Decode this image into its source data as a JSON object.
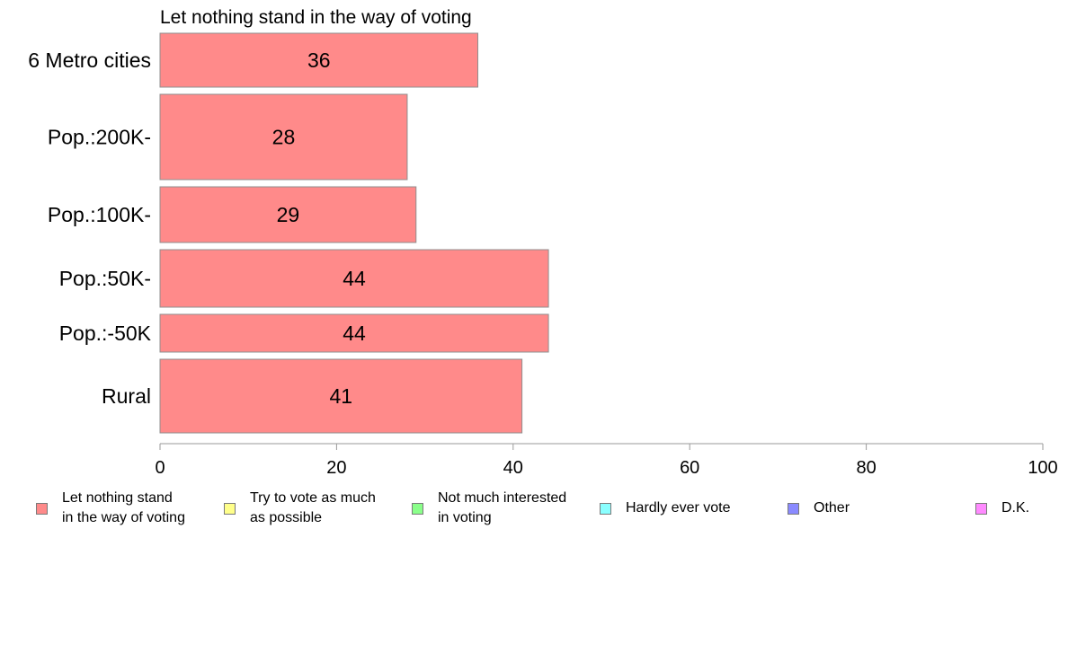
{
  "chart_data": {
    "type": "bar",
    "orientation": "horizontal",
    "title": "Let nothing stand in the way of voting",
    "xlabel": "",
    "ylabel": "",
    "xlim": [
      0,
      100
    ],
    "x_ticks": [
      "0",
      "20",
      "40",
      "60",
      "80",
      "100"
    ],
    "grid": false,
    "categories": [
      "6 Metro cities",
      "Pop.:200K-",
      "Pop.:100K-",
      "Pop.:50K-",
      "Pop.:-50K",
      "Rural"
    ],
    "series": [
      {
        "name": "Let nothing stand in the way of voting",
        "color": "#ff8a8a",
        "values": [
          36,
          28,
          29,
          44,
          44,
          41
        ],
        "labels": [
          "36",
          "28",
          "29",
          "44",
          "44",
          "41"
        ]
      }
    ],
    "legend_position": "bottom"
  },
  "legend": [
    {
      "label": "Let nothing stand\nin the way of voting",
      "color": "#ff8a8a"
    },
    {
      "label": "Try to vote as much\nas possible",
      "color": "#ffff8a"
    },
    {
      "label": "Not much interested\nin voting",
      "color": "#8aff8a"
    },
    {
      "label": "Hardly ever vote",
      "color": "#8affff"
    },
    {
      "label": "Other",
      "color": "#8a8aff"
    },
    {
      "label": "D.K.",
      "color": "#ff8aff"
    }
  ]
}
